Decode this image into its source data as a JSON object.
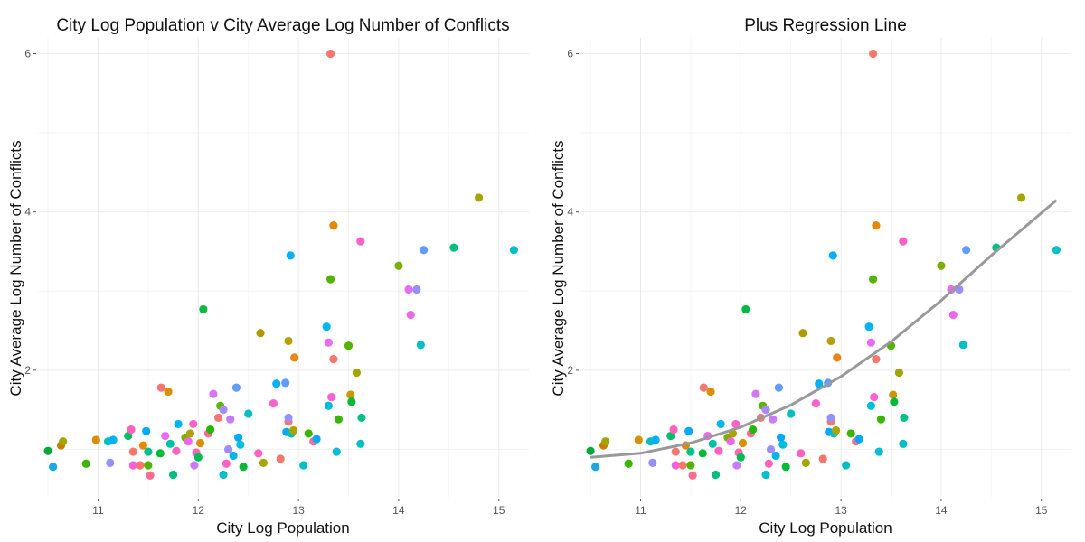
{
  "chart_data": [
    {
      "type": "scatter",
      "title": "City Log Population v City Average Log Number of Conflicts",
      "xlabel": "City Log Population",
      "ylabel": "City Average Log Number of Conflicts",
      "xlim": [
        10.4,
        15.3
      ],
      "ylim": [
        0.4,
        6.2
      ],
      "x_ticks": [
        "11",
        "12",
        "13",
        "14",
        "15"
      ],
      "y_ticks": [
        "2",
        "4",
        "6"
      ],
      "grid": true,
      "legend": "none",
      "points": [
        {
          "x": 10.5,
          "y": 0.98,
          "color": "#00A93A"
        },
        {
          "x": 10.55,
          "y": 0.78,
          "color": "#1CA7E6"
        },
        {
          "x": 10.63,
          "y": 1.05,
          "color": "#C77C00"
        },
        {
          "x": 10.65,
          "y": 1.1,
          "color": "#A3A500"
        },
        {
          "x": 10.88,
          "y": 0.82,
          "color": "#39B600"
        },
        {
          "x": 10.98,
          "y": 1.12,
          "color": "#D89000"
        },
        {
          "x": 11.1,
          "y": 1.1,
          "color": "#00BFC4"
        },
        {
          "x": 11.12,
          "y": 0.83,
          "color": "#9590FF"
        },
        {
          "x": 11.15,
          "y": 1.12,
          "color": "#00B0F6"
        },
        {
          "x": 11.3,
          "y": 1.17,
          "color": "#00BE67"
        },
        {
          "x": 11.33,
          "y": 1.25,
          "color": "#FF62BC"
        },
        {
          "x": 11.35,
          "y": 0.97,
          "color": "#F8766D"
        },
        {
          "x": 11.35,
          "y": 0.8,
          "color": "#FB61D7"
        },
        {
          "x": 11.42,
          "y": 0.8,
          "color": "#F8766D"
        },
        {
          "x": 11.45,
          "y": 1.05,
          "color": "#E58700"
        },
        {
          "x": 11.48,
          "y": 1.23,
          "color": "#00A9FF"
        },
        {
          "x": 11.5,
          "y": 0.97,
          "color": "#00C08B"
        },
        {
          "x": 11.52,
          "y": 0.67,
          "color": "#FF6C91"
        },
        {
          "x": 11.5,
          "y": 0.8,
          "color": "#53B400"
        },
        {
          "x": 11.62,
          "y": 0.95,
          "color": "#00BA38"
        },
        {
          "x": 11.63,
          "y": 1.78,
          "color": "#F8766D"
        },
        {
          "x": 11.67,
          "y": 1.17,
          "color": "#E76BF3"
        },
        {
          "x": 11.7,
          "y": 1.73,
          "color": "#D89000"
        },
        {
          "x": 11.72,
          "y": 1.07,
          "color": "#00C1A3"
        },
        {
          "x": 11.75,
          "y": 0.68,
          "color": "#00BF7D"
        },
        {
          "x": 11.78,
          "y": 0.98,
          "color": "#FF61C3"
        },
        {
          "x": 11.8,
          "y": 1.32,
          "color": "#00B4F0"
        },
        {
          "x": 11.87,
          "y": 1.15,
          "color": "#7CAE00"
        },
        {
          "x": 11.9,
          "y": 1.1,
          "color": "#F066EA"
        },
        {
          "x": 11.92,
          "y": 1.2,
          "color": "#ABA300"
        },
        {
          "x": 11.95,
          "y": 1.32,
          "color": "#FF61C9"
        },
        {
          "x": 11.96,
          "y": 0.8,
          "color": "#C77CFF"
        },
        {
          "x": 11.98,
          "y": 0.96,
          "color": "#FF65AE"
        },
        {
          "x": 12.0,
          "y": 0.9,
          "color": "#00BC56"
        },
        {
          "x": 12.02,
          "y": 1.08,
          "color": "#DB8E00"
        },
        {
          "x": 12.05,
          "y": 2.77,
          "color": "#00BA42"
        },
        {
          "x": 12.1,
          "y": 1.2,
          "color": "#FF6A98"
        },
        {
          "x": 12.12,
          "y": 1.25,
          "color": "#24B700"
        },
        {
          "x": 12.15,
          "y": 1.7,
          "color": "#D575FE"
        },
        {
          "x": 12.2,
          "y": 1.4,
          "color": "#F8766D"
        },
        {
          "x": 12.22,
          "y": 1.55,
          "color": "#5EB300"
        },
        {
          "x": 12.25,
          "y": 1.5,
          "color": "#AC88FF"
        },
        {
          "x": 12.25,
          "y": 0.68,
          "color": "#00BDD0"
        },
        {
          "x": 12.28,
          "y": 0.82,
          "color": "#FF62BC"
        },
        {
          "x": 12.3,
          "y": 1.0,
          "color": "#9F8CFF"
        },
        {
          "x": 12.32,
          "y": 1.38,
          "color": "#C77CFF"
        },
        {
          "x": 12.35,
          "y": 0.92,
          "color": "#00B5EE"
        },
        {
          "x": 12.38,
          "y": 1.78,
          "color": "#619CFF"
        },
        {
          "x": 12.4,
          "y": 1.15,
          "color": "#00A9FF"
        },
        {
          "x": 12.42,
          "y": 1.06,
          "color": "#00BCD8"
        },
        {
          "x": 12.45,
          "y": 0.78,
          "color": "#00BA38"
        },
        {
          "x": 12.5,
          "y": 1.45,
          "color": "#00BFC4"
        },
        {
          "x": 12.6,
          "y": 0.95,
          "color": "#FF61C3"
        },
        {
          "x": 12.62,
          "y": 2.47,
          "color": "#AB9A00"
        },
        {
          "x": 12.65,
          "y": 0.83,
          "color": "#A3A500"
        },
        {
          "x": 12.75,
          "y": 1.58,
          "color": "#FF61C9"
        },
        {
          "x": 12.78,
          "y": 1.83,
          "color": "#00B0F6"
        },
        {
          "x": 12.82,
          "y": 0.88,
          "color": "#F8766D"
        },
        {
          "x": 12.87,
          "y": 1.84,
          "color": "#619CFF"
        },
        {
          "x": 12.88,
          "y": 1.22,
          "color": "#00A9FF"
        },
        {
          "x": 12.9,
          "y": 1.35,
          "color": "#F8766D"
        },
        {
          "x": 12.9,
          "y": 1.4,
          "color": "#9590FF"
        },
        {
          "x": 12.9,
          "y": 2.37,
          "color": "#B79F00"
        },
        {
          "x": 12.92,
          "y": 3.45,
          "color": "#00B0F6"
        },
        {
          "x": 12.93,
          "y": 1.2,
          "color": "#00BFC4"
        },
        {
          "x": 12.95,
          "y": 1.24,
          "color": "#ABA300"
        },
        {
          "x": 12.96,
          "y": 2.16,
          "color": "#E7861B"
        },
        {
          "x": 13.05,
          "y": 0.8,
          "color": "#00BFC4"
        },
        {
          "x": 13.1,
          "y": 1.2,
          "color": "#39B600"
        },
        {
          "x": 13.15,
          "y": 1.1,
          "color": "#FF6C91"
        },
        {
          "x": 13.18,
          "y": 1.13,
          "color": "#00A9FF"
        },
        {
          "x": 13.28,
          "y": 2.55,
          "color": "#00B5EE"
        },
        {
          "x": 13.3,
          "y": 1.55,
          "color": "#00BCD8"
        },
        {
          "x": 13.32,
          "y": 3.15,
          "color": "#53B400"
        },
        {
          "x": 13.3,
          "y": 2.35,
          "color": "#E76BF3"
        },
        {
          "x": 13.32,
          "y": 6.0,
          "color": "#F8766D"
        },
        {
          "x": 13.33,
          "y": 1.66,
          "color": "#FB61D7"
        },
        {
          "x": 13.35,
          "y": 2.14,
          "color": "#F8766D"
        },
        {
          "x": 13.35,
          "y": 3.83,
          "color": "#E58700"
        },
        {
          "x": 13.38,
          "y": 0.97,
          "color": "#00BCD8"
        },
        {
          "x": 13.4,
          "y": 1.38,
          "color": "#39B600"
        },
        {
          "x": 13.5,
          "y": 2.31,
          "color": "#53B400"
        },
        {
          "x": 13.52,
          "y": 1.69,
          "color": "#C99800"
        },
        {
          "x": 13.53,
          "y": 1.6,
          "color": "#00BA38"
        },
        {
          "x": 13.58,
          "y": 1.97,
          "color": "#A3A500"
        },
        {
          "x": 13.62,
          "y": 3.63,
          "color": "#FF61C3"
        },
        {
          "x": 13.62,
          "y": 1.07,
          "color": "#00BFC4"
        },
        {
          "x": 13.63,
          "y": 1.4,
          "color": "#00C08B"
        },
        {
          "x": 14.0,
          "y": 3.32,
          "color": "#7CAE00"
        },
        {
          "x": 14.1,
          "y": 3.02,
          "color": "#E76BF3"
        },
        {
          "x": 14.12,
          "y": 2.7,
          "color": "#F066EA"
        },
        {
          "x": 14.18,
          "y": 3.02,
          "color": "#9590FF"
        },
        {
          "x": 14.22,
          "y": 2.32,
          "color": "#00BFC4"
        },
        {
          "x": 14.25,
          "y": 3.52,
          "color": "#619CFF"
        },
        {
          "x": 14.55,
          "y": 3.55,
          "color": "#00BF7D"
        },
        {
          "x": 14.8,
          "y": 4.18,
          "color": "#A3A500"
        },
        {
          "x": 15.15,
          "y": 3.52,
          "color": "#00BFC4"
        }
      ]
    },
    {
      "type": "scatter",
      "title": "Plus Regression Line",
      "xlabel": "City Log Population",
      "ylabel": "City Average Log Number of Conflicts",
      "xlim": [
        10.4,
        15.3
      ],
      "ylim": [
        0.4,
        6.2
      ],
      "x_ticks": [
        "11",
        "12",
        "13",
        "14",
        "15"
      ],
      "y_ticks": [
        "2",
        "4",
        "6"
      ],
      "grid": true,
      "legend": "none",
      "regression_line": {
        "color": "#999999",
        "x": [
          10.5,
          11.0,
          11.5,
          12.0,
          12.5,
          13.0,
          13.5,
          14.0,
          14.5,
          15.15
        ],
        "y": [
          0.9,
          0.95,
          1.08,
          1.28,
          1.56,
          1.92,
          2.36,
          2.88,
          3.45,
          4.15
        ]
      }
    }
  ]
}
